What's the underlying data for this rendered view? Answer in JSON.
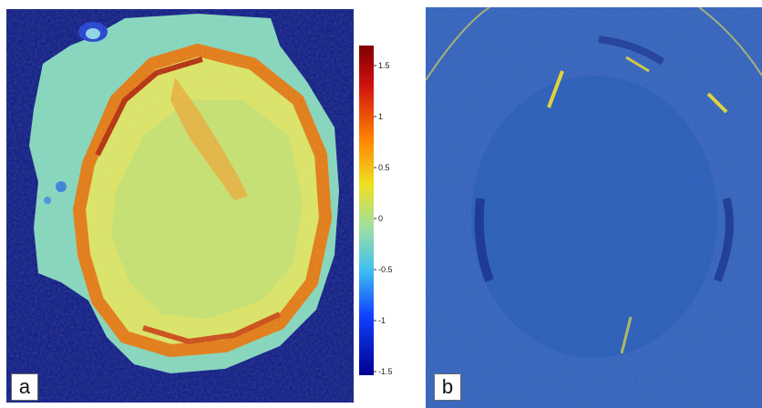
{
  "panels": {
    "a": {
      "label": "a"
    },
    "b": {
      "label": "b"
    }
  },
  "colorbar": {
    "ticks": [
      "1.5",
      "1",
      "0.5",
      "0",
      "-0.5",
      "-1",
      "-1.5"
    ],
    "min": -1.5,
    "max": 1.5,
    "colormap": "jet"
  }
}
